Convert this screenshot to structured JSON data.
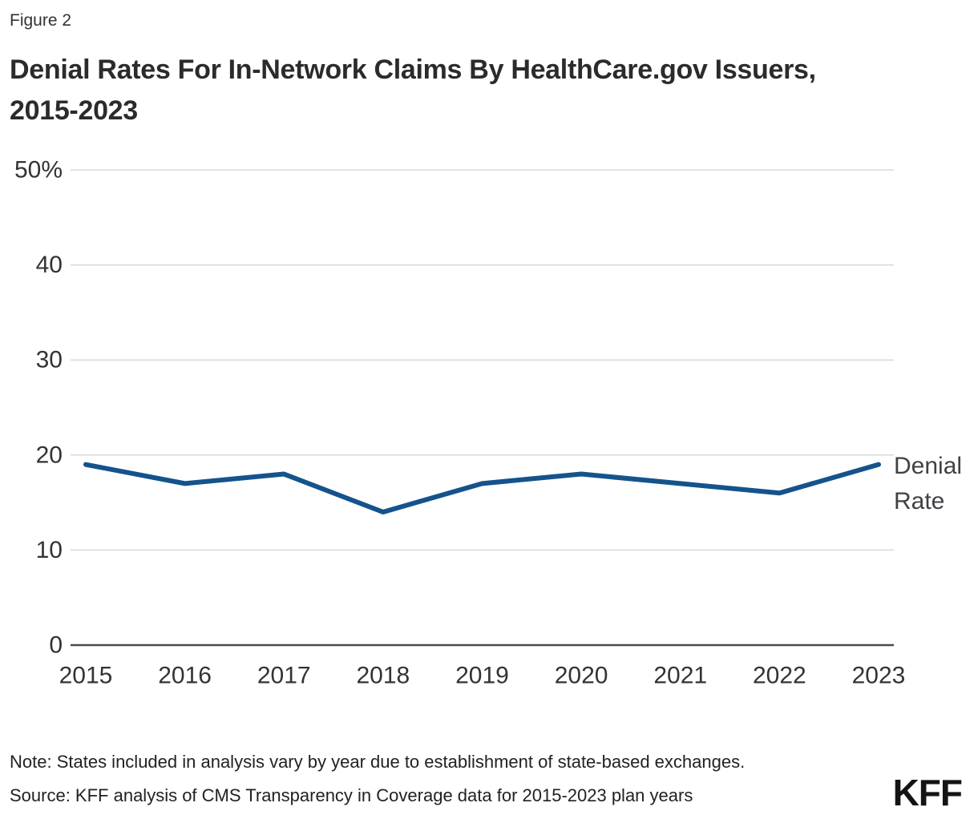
{
  "figure": {
    "label": "Figure 2",
    "title": "Denial Rates For In-Network Claims By HealthCare.gov Issuers, 2015-2023"
  },
  "series_label": "Denial Rate",
  "footer": {
    "note": "Note: States included in analysis vary by year due to establishment of state-based exchanges.",
    "source": "Source: KFF analysis of CMS Transparency in Coverage data for 2015-2023 plan years",
    "logo": "KFF"
  },
  "colors": {
    "line": "#14538c",
    "gridline": "#d9d9d9",
    "axis": "#4a4a4a",
    "tick_text": "#333333"
  },
  "chart_data": {
    "type": "line",
    "title": "Denial Rates For In-Network Claims By HealthCare.gov Issuers, 2015-2023",
    "x": [
      2015,
      2016,
      2017,
      2018,
      2019,
      2020,
      2021,
      2022,
      2023
    ],
    "series": [
      {
        "name": "Denial Rate",
        "values": [
          19,
          17,
          18,
          14,
          17,
          18,
          17,
          16,
          19
        ]
      }
    ],
    "xlabel": "",
    "ylabel": "",
    "ylim": [
      0,
      50
    ],
    "yticks": [
      0,
      10,
      20,
      30,
      40,
      50
    ],
    "ytick_labels": [
      "0",
      "10",
      "20",
      "30",
      "40",
      "50%"
    ],
    "grid": "horizontal",
    "legend_position": "right-of-line-end"
  }
}
